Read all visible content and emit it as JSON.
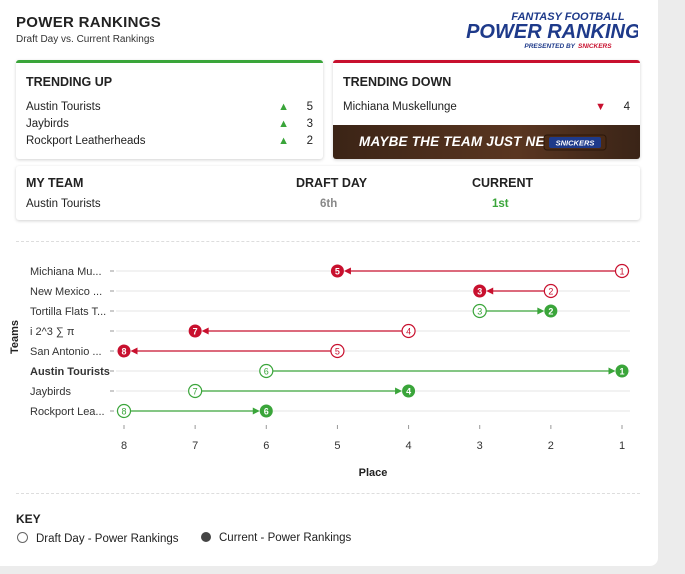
{
  "header": {
    "title": "POWER RANKINGS",
    "subtitle": "Draft Day vs. Current Rankings",
    "logo_line1": "FANTASY FOOTBALL",
    "logo_line2": "POWER RANKINGS",
    "logo_line3": "PRESENTED BY",
    "logo_brand": "SNICKERS"
  },
  "trending_up": {
    "title": "TRENDING UP",
    "items": [
      {
        "team": "Austin Tourists",
        "change": "5"
      },
      {
        "team": "Jaybirds",
        "change": "3"
      },
      {
        "team": "Rockport Leatherheads",
        "change": "2"
      }
    ]
  },
  "trending_down": {
    "title": "TRENDING DOWN",
    "items": [
      {
        "team": "Michiana Muskellunge",
        "change": "4"
      }
    ],
    "banner_text": "MAYBE THE TEAM JUST NEEDS A",
    "banner_brand": "SNICKERS"
  },
  "my_team": {
    "label": "MY TEAM",
    "draft_label": "DRAFT DAY",
    "current_label": "CURRENT",
    "team": "Austin Tourists",
    "draft": "6th",
    "current": "1st"
  },
  "colors": {
    "up": "#3aa53a",
    "down": "#c8102e"
  },
  "chart_data": {
    "type": "dumbbell",
    "ylabel": "Teams",
    "xlabel": "Place",
    "xlim": [
      8,
      1
    ],
    "x_ticks": [
      "8",
      "7",
      "6",
      "5",
      "4",
      "3",
      "2",
      "1"
    ],
    "series": [
      {
        "team": "Michiana Mu...",
        "draft": 1,
        "current": 5,
        "bold": false
      },
      {
        "team": "New Mexico ...",
        "draft": 2,
        "current": 3,
        "bold": false
      },
      {
        "team": "Tortilla Flats T...",
        "draft": 3,
        "current": 2,
        "bold": false
      },
      {
        "team": "i 2^3 ∑ π",
        "draft": 4,
        "current": 7,
        "bold": false
      },
      {
        "team": "San Antonio ...",
        "draft": 5,
        "current": 8,
        "bold": false
      },
      {
        "team": "Austin Tourists",
        "draft": 6,
        "current": 1,
        "bold": true
      },
      {
        "team": "Jaybirds",
        "draft": 7,
        "current": 4,
        "bold": false
      },
      {
        "team": "Rockport Lea...",
        "draft": 8,
        "current": 6,
        "bold": false
      }
    ]
  },
  "key": {
    "title": "KEY",
    "draft_label": "Draft Day - Power Rankings",
    "current_label": "Current - Power Rankings"
  }
}
